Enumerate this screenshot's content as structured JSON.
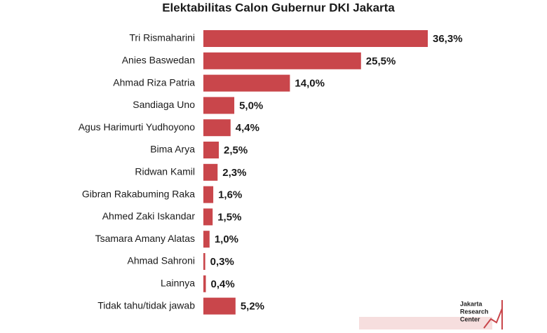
{
  "chart_data": {
    "type": "bar",
    "orientation": "horizontal",
    "title": "Elektabilitas Calon Gubernur DKI Jakarta",
    "categories": [
      "Tri Rismaharini",
      "Anies Baswedan",
      "Ahmad Riza Patria",
      "Sandiaga Uno",
      "Agus Harimurti Yudhoyono",
      "Bima Arya",
      "Ridwan Kamil",
      "Gibran Rakabuming Raka",
      "Ahmed Zaki Iskandar",
      "Tsamara Amany Alatas",
      "Ahmad Sahroni",
      "Lainnya",
      "Tidak tahu/tidak jawab"
    ],
    "values": [
      36.3,
      25.5,
      14.0,
      5.0,
      4.4,
      2.5,
      2.3,
      1.6,
      1.5,
      1.0,
      0.3,
      0.4,
      5.2
    ],
    "value_labels": [
      "36,3%",
      "25,5%",
      "14,0%",
      "5,0%",
      "4,4%",
      "2,5%",
      "2,3%",
      "1,6%",
      "1,5%",
      "1,0%",
      "0,3%",
      "0,4%",
      "5,2%"
    ],
    "color": "#c9464b",
    "logo_text": [
      "Jakarta",
      "Research",
      "Center"
    ]
  }
}
